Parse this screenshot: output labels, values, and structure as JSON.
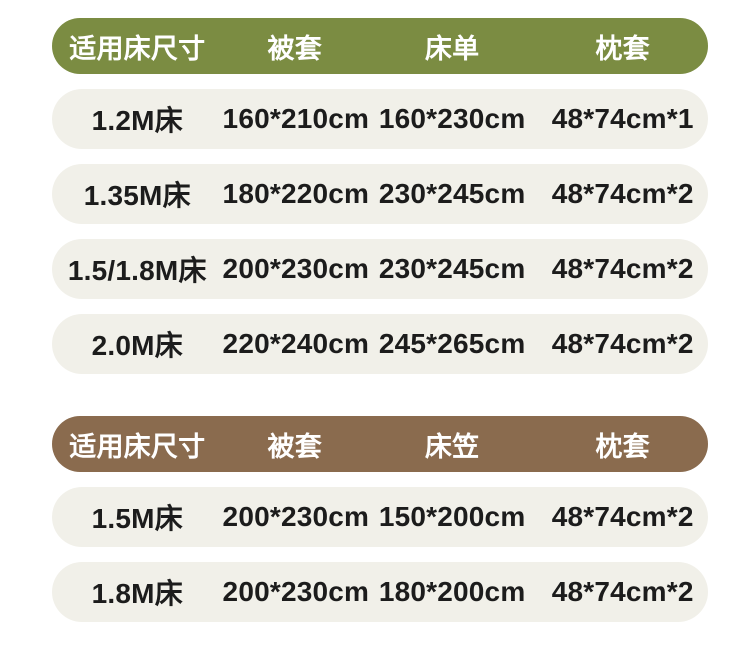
{
  "colors": {
    "page_bg": "#ffffff",
    "table1_header_bg": "#7b8c42",
    "table2_header_bg": "#8a6b4e",
    "row_bg": "#f1f0e9",
    "header_text": "#ffffff",
    "row_text": "#1c1c1c"
  },
  "chart_data": [
    {
      "type": "table",
      "name": "sheet-set-size-table",
      "header_bg": "#7b8c42",
      "columns": [
        "适用床尺寸",
        "被套",
        "床单",
        "枕套"
      ],
      "rows": [
        [
          "1.2M床",
          "160*210cm",
          "160*230cm",
          "48*74cm*1"
        ],
        [
          "1.35M床",
          "180*220cm",
          "230*245cm",
          "48*74cm*2"
        ],
        [
          "1.5/1.8M床",
          "200*230cm",
          "230*245cm",
          "48*74cm*2"
        ],
        [
          "2.0M床",
          "220*240cm",
          "245*265cm",
          "48*74cm*2"
        ]
      ]
    },
    {
      "type": "table",
      "name": "fitted-sheet-set-size-table",
      "header_bg": "#8a6b4e",
      "columns": [
        "适用床尺寸",
        "被套",
        "床笠",
        "枕套"
      ],
      "rows": [
        [
          "1.5M床",
          "200*230cm",
          "150*200cm",
          "48*74cm*2"
        ],
        [
          "1.8M床",
          "200*230cm",
          "180*200cm",
          "48*74cm*2"
        ]
      ]
    }
  ]
}
